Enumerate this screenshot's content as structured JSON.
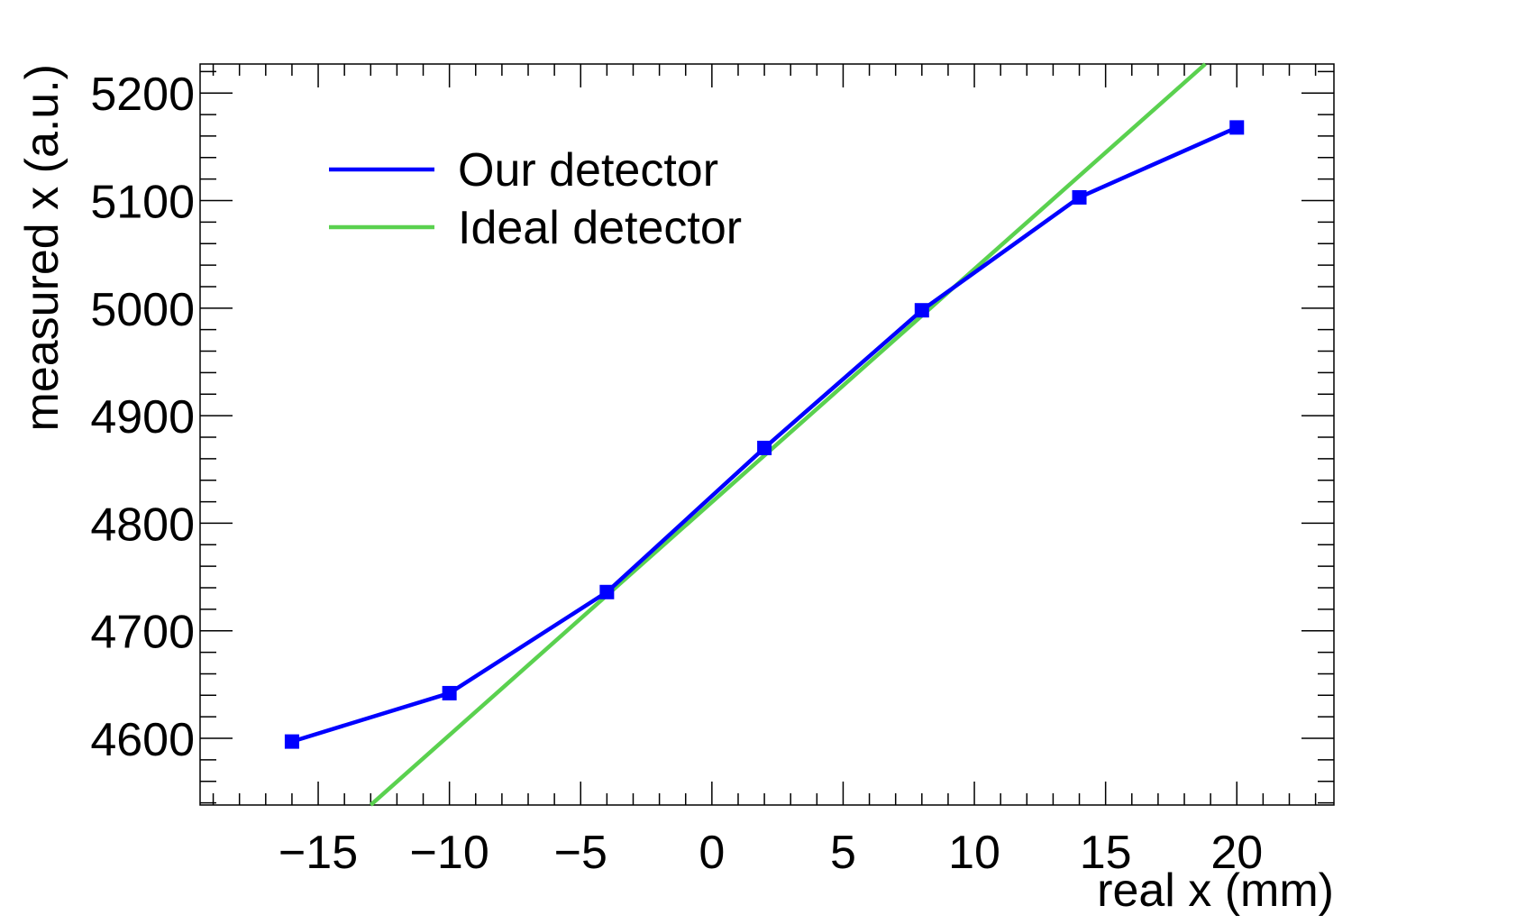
{
  "chart_data": {
    "type": "line",
    "xlabel": "real x (mm)",
    "ylabel": "measured x (a.u.)",
    "xlim": [
      -19.5,
      23.7
    ],
    "ylim": [
      4538,
      5227
    ],
    "x_ticks": [
      -15,
      -10,
      -5,
      0,
      5,
      10,
      15,
      20
    ],
    "x_tick_labels": [
      "−15",
      "−10",
      "−5",
      "0",
      "5",
      "10",
      "15",
      "20"
    ],
    "y_ticks": [
      4600,
      4700,
      4800,
      4900,
      5000,
      5100,
      5200
    ],
    "y_tick_labels": [
      "4600",
      "4700",
      "4800",
      "4900",
      "5000",
      "5100",
      "5200"
    ],
    "grid": false,
    "legend_position": "top-left",
    "series": [
      {
        "name": "Our detector",
        "color": "#0000ff",
        "marker": "square",
        "x": [
          -16,
          -10,
          -4,
          2,
          8,
          14,
          20
        ],
        "y": [
          4597,
          4642,
          4736,
          4870,
          4998,
          5103,
          5168
        ]
      },
      {
        "name": "Ideal detector",
        "color": "#5ad14f",
        "marker": "none",
        "x": [
          -13,
          18.8
        ],
        "y": [
          4538,
          5227
        ]
      }
    ]
  }
}
